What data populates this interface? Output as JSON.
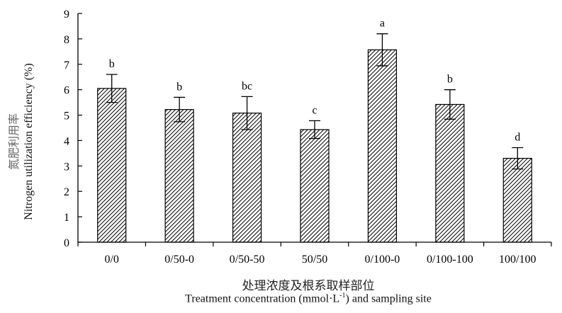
{
  "chart_data": {
    "type": "bar",
    "categories": [
      "0/0",
      "0/50-0",
      "0/50-50",
      "50/50",
      "0/100-0",
      "0/100-100",
      "100/100"
    ],
    "values": [
      6.05,
      5.22,
      5.08,
      4.43,
      7.57,
      5.42,
      3.3
    ],
    "errors": [
      0.55,
      0.48,
      0.65,
      0.35,
      0.63,
      0.58,
      0.42
    ],
    "significance": [
      "b",
      "b",
      "bc",
      "c",
      "a",
      "b",
      "d"
    ],
    "ylabel_cn": "氮肥利用率",
    "ylabel_en": "Nitrogen utilization efficiency (%)",
    "xlabel_cn": "处理浓度及根系取样部位",
    "xlabel_en_pre": "Treatment concentration (mmol·L",
    "xlabel_en_sup": "-1",
    "xlabel_en_post": ") and sampling site",
    "ylim": [
      0,
      9
    ],
    "yticks": [
      0,
      1,
      2,
      3,
      4,
      5,
      6,
      7,
      8,
      9
    ],
    "grid": false,
    "bar_fill": "hatched",
    "colors": {
      "axis": "#000000",
      "hatch": "#000000",
      "bar_bg": "#ffffff"
    }
  }
}
